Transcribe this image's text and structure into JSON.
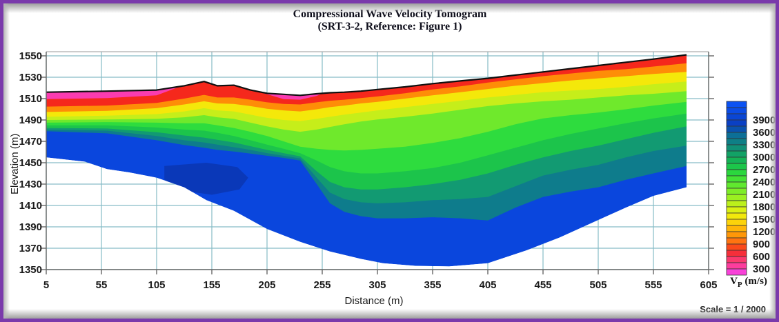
{
  "frame": {
    "border_color": "#7a3aab",
    "scale_note": "Scale = 1 / 2000"
  },
  "title": {
    "line1": "Compressional Wave Velocity Tomogram",
    "line2": "(SRT-3-2, Reference: Figure 1)"
  },
  "chart_data": {
    "type": "heatmap",
    "subtype": "seismic-velocity-tomogram-cross-section",
    "title": "Compressional Wave Velocity Tomogram (SRT-3-2, Reference: Figure 1)",
    "xlabel": "Distance (m)",
    "ylabel": "Elevation (m)",
    "xlim": [
      5,
      605
    ],
    "ylim": [
      1350,
      1550
    ],
    "x_ticks": [
      5,
      55,
      105,
      155,
      205,
      255,
      305,
      355,
      405,
      455,
      505,
      555,
      605
    ],
    "y_ticks": [
      1350,
      1370,
      1390,
      1410,
      1430,
      1450,
      1470,
      1490,
      1510,
      1530,
      1550
    ],
    "grid": true,
    "grid_color": "#86bcc6",
    "axis_color": "#666666",
    "topo_line_color": "#101010",
    "colorbar": {
      "title_v": "V",
      "title_sub": "P",
      "title_unit": " (m/s)",
      "unit": "m/s",
      "min": 300,
      "max": 4350,
      "cell_step": 150,
      "labels_top_to_bottom": [
        3900,
        3600,
        3300,
        3000,
        2700,
        2400,
        2100,
        1800,
        1500,
        1200,
        900,
        600,
        300
      ],
      "colors_top_to_bottom": [
        "#0b52f2",
        "#0b4ce4",
        "#0a46d4",
        "#0a40c4",
        "#0a52ae",
        "#0c6f96",
        "#0e7f86",
        "#109076",
        "#12a266",
        "#15b356",
        "#1cc64a",
        "#2bd73e",
        "#44e234",
        "#60e92e",
        "#7eed27",
        "#9cf021",
        "#bcf01b",
        "#daf013",
        "#f2e80c",
        "#fcd30a",
        "#ffb508",
        "#ff9708",
        "#ff7410",
        "#fb4a1a",
        "#f62f3a",
        "#fb3a6e",
        "#fd3d9d",
        "#f841d8"
      ]
    },
    "section": {
      "x_start": 5,
      "x_end": 585,
      "base_color": "#0a46dd",
      "dark_patch_color": "#0a38b8",
      "x_stations": [
        5,
        60,
        105,
        130,
        148,
        160,
        175,
        190,
        205,
        220,
        235,
        250,
        262,
        275,
        290,
        305,
        330,
        355,
        380,
        405,
        430,
        455,
        480,
        505,
        530,
        555,
        585
      ],
      "surface_profile": [
        1516,
        1517,
        1518,
        1522,
        1526,
        1522,
        1522.5,
        1518,
        1515,
        1514,
        1513,
        1514.5,
        1515.5,
        1516,
        1517,
        1518.5,
        1521,
        1524,
        1526.5,
        1529,
        1532,
        1535,
        1538,
        1541,
        1544,
        1547,
        1551
      ],
      "bottom_boundary": [
        [
          5,
          1455
        ],
        [
          40,
          1451
        ],
        [
          60,
          1444
        ],
        [
          80,
          1441
        ],
        [
          105,
          1436
        ],
        [
          130,
          1427
        ],
        [
          150,
          1415
        ],
        [
          175,
          1405
        ],
        [
          205,
          1388
        ],
        [
          235,
          1376
        ],
        [
          262,
          1367
        ],
        [
          290,
          1360
        ],
        [
          310,
          1356
        ],
        [
          340,
          1353.5
        ],
        [
          370,
          1353
        ],
        [
          405,
          1356
        ],
        [
          440,
          1368
        ],
        [
          470,
          1380
        ],
        [
          500,
          1394
        ],
        [
          530,
          1408
        ],
        [
          555,
          1419
        ],
        [
          585,
          1427
        ]
      ],
      "dark_patch": [
        [
          112,
          1447
        ],
        [
          150,
          1450
        ],
        [
          178,
          1446
        ],
        [
          188,
          1436
        ],
        [
          180,
          1425
        ],
        [
          155,
          1420
        ],
        [
          128,
          1424
        ],
        [
          112,
          1434
        ]
      ],
      "bands": [
        {
          "name": "teal-3600",
          "vmax": 3600,
          "color": "#0e7c8c",
          "bottom": [
            1479.5,
            1477.5,
            1471,
            1466.5,
            1464,
            1462,
            1460.5,
            1458.5,
            1456.5,
            1454.5,
            1452,
            1430,
            1412,
            1404,
            1400,
            1398,
            1398,
            1399,
            1398,
            1396,
            1408,
            1418,
            1423,
            1427,
            1434,
            1440,
            1447
          ]
        },
        {
          "name": "teal-3300",
          "vmax": 3300,
          "color": "#129a72",
          "bottom": [
            1481,
            1480,
            1475,
            1471,
            1469,
            1467,
            1464.5,
            1462,
            1459,
            1456.5,
            1454,
            1436,
            1422,
            1416,
            1413,
            1412,
            1413,
            1415,
            1416,
            1418,
            1428,
            1438,
            1443.5,
            1448,
            1455,
            1461,
            1466
          ]
        },
        {
          "name": "green-3000",
          "vmax": 3000,
          "color": "#1cc44b",
          "bottom": [
            1482.5,
            1482,
            1478.5,
            1475.5,
            1473.5,
            1471.5,
            1469,
            1465.5,
            1462,
            1459,
            1456,
            1442,
            1432,
            1427,
            1425,
            1425,
            1427,
            1430,
            1434,
            1440,
            1448,
            1455,
            1461,
            1466,
            1472,
            1478,
            1484
          ]
        },
        {
          "name": "green-2700",
          "vmax": 2700,
          "color": "#2edc3e",
          "bottom": [
            1485,
            1485,
            1483,
            1481,
            1480,
            1478,
            1475,
            1471,
            1467,
            1463,
            1459,
            1452,
            1446,
            1442,
            1440,
            1440,
            1442,
            1445,
            1450,
            1457,
            1464,
            1471,
            1477,
            1482,
            1487,
            1491.5,
            1496
          ]
        },
        {
          "name": "light-green-2400",
          "vmax": 2400,
          "color": "#6fe92c",
          "bottom": [
            1487.5,
            1488,
            1487.5,
            1487,
            1487,
            1485,
            1482.5,
            1479,
            1475,
            1470,
            1465,
            1463,
            1462,
            1461.5,
            1462,
            1463,
            1465,
            1468.5,
            1473,
            1479,
            1486,
            1491.5,
            1494.5,
            1497,
            1500,
            1503.5,
            1507
          ]
        },
        {
          "name": "yellow-green-2100",
          "vmax": 2100,
          "color": "#c6ee1a",
          "bottom": [
            1490,
            1490.5,
            1491,
            1492.5,
            1494.5,
            1492.5,
            1491,
            1487.5,
            1484,
            1481,
            1479,
            1481,
            1483.5,
            1486,
            1488.5,
            1490.5,
            1493,
            1496,
            1499.5,
            1503,
            1505.5,
            1507.5,
            1509,
            1511,
            1513,
            1514.5,
            1517
          ]
        },
        {
          "name": "yellow-1800",
          "vmax": 1800,
          "color": "#f4e80a",
          "bottom": [
            1493,
            1494,
            1495.5,
            1498,
            1501,
            1499,
            1498,
            1495,
            1492,
            1490,
            1489,
            1491,
            1493,
            1495,
            1497,
            1499,
            1502,
            1505,
            1508,
            1511,
            1513.5,
            1516,
            1517.5,
            1519,
            1521,
            1523.5,
            1526
          ]
        },
        {
          "name": "orange-1350",
          "vmax": 1350,
          "color": "#fe8d07",
          "bottom": [
            1497.5,
            1498.5,
            1501,
            1504.5,
            1507.5,
            1505.5,
            1505,
            1503,
            1500.5,
            1499,
            1498,
            1500,
            1502,
            1503.5,
            1505.5,
            1507,
            1510,
            1513,
            1516,
            1519,
            1522,
            1524.5,
            1527,
            1529,
            1531,
            1533,
            1535
          ]
        },
        {
          "name": "red-900",
          "vmax": 900,
          "color": "#f5281c",
          "bottom": [
            1502.5,
            1503.5,
            1506,
            1510,
            1513.5,
            1511,
            1511,
            1509,
            1506.5,
            1505,
            1504.5,
            1506.5,
            1508,
            1509,
            1510.5,
            1512,
            1515,
            1518.5,
            1521.5,
            1525,
            1528,
            1531,
            1533.5,
            1536,
            1537.5,
            1540,
            1543
          ]
        }
      ],
      "pink_patches": [
        {
          "name": "pink-450-left",
          "vmax": 450,
          "color": "#fa3cb0",
          "points": [
            [
              5,
              1509.5
            ],
            [
              60,
              1510.5
            ],
            [
              105,
              1513
            ],
            [
              125,
              1520.8
            ]
          ]
        },
        {
          "name": "pink-450-mid",
          "vmax": 450,
          "color": "#fa3cb0",
          "points": [
            [
              200,
              1515.6
            ],
            [
              220,
              1509.5
            ],
            [
              235,
              1509
            ],
            [
              250,
              1512.5
            ],
            [
              255,
              1514.8
            ]
          ]
        }
      ]
    }
  }
}
